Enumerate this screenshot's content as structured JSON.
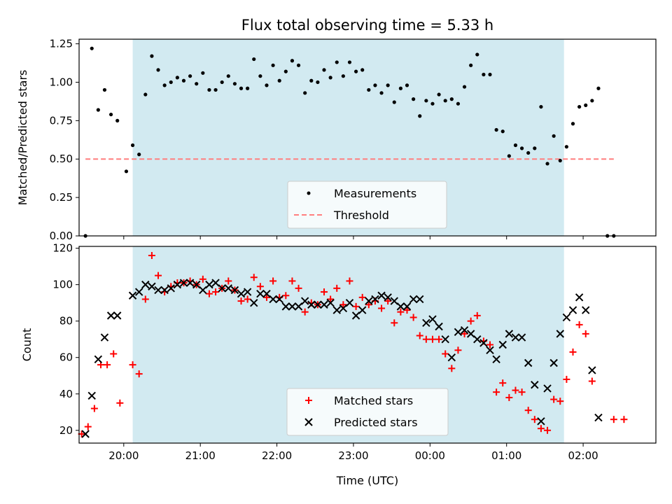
{
  "chart_data": [
    {
      "type": "scatter",
      "title": "Flux total observing time = 5.33 h",
      "xlabel": "",
      "ylabel": "Matched/Predicted stars",
      "xlim": [
        "19:25",
        "02:57"
      ],
      "ylim": [
        0,
        1.28
      ],
      "yticks": [
        0.0,
        0.25,
        0.5,
        0.75,
        1.0,
        1.25
      ],
      "ytick_labels": [
        "0.00",
        "0.25",
        "0.50",
        "0.75",
        "1.00",
        "1.25"
      ],
      "xticks": [
        "20:00",
        "21:00",
        "22:00",
        "23:00",
        "00:00",
        "01:00",
        "02:00"
      ],
      "xticks_labeled": false,
      "shaded_span": [
        "20:07",
        "01:45"
      ],
      "shaded_color": "#add8e6",
      "legend": {
        "position": "lower center",
        "entries": [
          "Measurements",
          "Threshold"
        ]
      },
      "threshold": {
        "name": "Threshold",
        "value": 0.5,
        "x_range": [
          "19:30",
          "02:24"
        ],
        "color": "#ff7f7f"
      },
      "series": [
        {
          "name": "Measurements",
          "color": "#000000",
          "marker": "dot",
          "points": [
            [
              "19:30",
              0.0
            ],
            [
              "19:35",
              1.22
            ],
            [
              "19:40",
              0.82
            ],
            [
              "19:45",
              0.95
            ],
            [
              "19:50",
              0.79
            ],
            [
              "19:55",
              0.75
            ],
            [
              "20:02",
              0.42
            ],
            [
              "20:07",
              0.59
            ],
            [
              "20:12",
              0.53
            ],
            [
              "20:17",
              0.92
            ],
            [
              "20:22",
              1.17
            ],
            [
              "20:27",
              1.08
            ],
            [
              "20:32",
              0.98
            ],
            [
              "20:37",
              1.0
            ],
            [
              "20:42",
              1.03
            ],
            [
              "20:47",
              1.01
            ],
            [
              "20:52",
              1.04
            ],
            [
              "20:57",
              0.99
            ],
            [
              "21:02",
              1.06
            ],
            [
              "21:07",
              0.95
            ],
            [
              "21:12",
              0.95
            ],
            [
              "21:17",
              1.0
            ],
            [
              "21:22",
              1.04
            ],
            [
              "21:27",
              0.99
            ],
            [
              "21:32",
              0.96
            ],
            [
              "21:37",
              0.96
            ],
            [
              "21:42",
              1.15
            ],
            [
              "21:47",
              1.04
            ],
            [
              "21:52",
              0.98
            ],
            [
              "21:57",
              1.11
            ],
            [
              "22:02",
              1.01
            ],
            [
              "22:07",
              1.07
            ],
            [
              "22:12",
              1.14
            ],
            [
              "22:17",
              1.11
            ],
            [
              "22:22",
              0.93
            ],
            [
              "22:27",
              1.01
            ],
            [
              "22:32",
              1.0
            ],
            [
              "22:37",
              1.08
            ],
            [
              "22:42",
              1.03
            ],
            [
              "22:47",
              1.13
            ],
            [
              "22:52",
              1.04
            ],
            [
              "22:57",
              1.13
            ],
            [
              "23:02",
              1.07
            ],
            [
              "23:07",
              1.08
            ],
            [
              "23:12",
              0.95
            ],
            [
              "23:17",
              0.98
            ],
            [
              "23:22",
              0.93
            ],
            [
              "23:27",
              0.98
            ],
            [
              "23:32",
              0.87
            ],
            [
              "23:37",
              0.96
            ],
            [
              "23:42",
              0.98
            ],
            [
              "23:47",
              0.89
            ],
            [
              "23:52",
              0.78
            ],
            [
              "23:57",
              0.88
            ],
            [
              "00:02",
              0.86
            ],
            [
              "00:07",
              0.92
            ],
            [
              "00:12",
              0.88
            ],
            [
              "00:17",
              0.89
            ],
            [
              "00:22",
              0.86
            ],
            [
              "00:27",
              0.97
            ],
            [
              "00:32",
              1.11
            ],
            [
              "00:37",
              1.18
            ],
            [
              "00:42",
              1.05
            ],
            [
              "00:47",
              1.05
            ],
            [
              "00:52",
              0.69
            ],
            [
              "00:57",
              0.68
            ],
            [
              "01:02",
              0.52
            ],
            [
              "01:07",
              0.59
            ],
            [
              "01:12",
              0.57
            ],
            [
              "01:17",
              0.54
            ],
            [
              "01:22",
              0.57
            ],
            [
              "01:27",
              0.84
            ],
            [
              "01:32",
              0.47
            ],
            [
              "01:37",
              0.65
            ],
            [
              "01:42",
              0.49
            ],
            [
              "01:47",
              0.58
            ],
            [
              "01:52",
              0.73
            ],
            [
              "01:57",
              0.84
            ],
            [
              "02:02",
              0.85
            ],
            [
              "02:07",
              0.88
            ],
            [
              "02:12",
              0.96
            ],
            [
              "02:19",
              0.0
            ],
            [
              "02:24",
              0.0
            ]
          ]
        }
      ]
    },
    {
      "type": "scatter",
      "title": "",
      "xlabel": "Time (UTC)",
      "ylabel": "Count",
      "xlim": [
        "19:25",
        "02:57"
      ],
      "ylim": [
        13,
        121
      ],
      "yticks": [
        20,
        40,
        60,
        80,
        100,
        120
      ],
      "xticks": [
        "20:00",
        "21:00",
        "22:00",
        "23:00",
        "00:00",
        "01:00",
        "02:00"
      ],
      "xtick_labels": [
        "20:00",
        "21:00",
        "22:00",
        "23:00",
        "00:00",
        "01:00",
        "02:00"
      ],
      "shaded_span": [
        "20:07",
        "01:45"
      ],
      "shaded_color": "#add8e6",
      "legend": {
        "position": "lower center",
        "entries": [
          "Matched stars",
          "Predicted stars"
        ]
      },
      "series": [
        {
          "name": "Matched stars",
          "color": "#ff0000",
          "marker": "plus",
          "points": [
            [
              "19:27",
              18
            ],
            [
              "19:32",
              22
            ],
            [
              "19:37",
              32
            ],
            [
              "19:42",
              56
            ],
            [
              "19:47",
              56
            ],
            [
              "19:52",
              62
            ],
            [
              "19:57",
              35
            ],
            [
              "20:07",
              56
            ],
            [
              "20:12",
              51
            ],
            [
              "20:17",
              92
            ],
            [
              "20:22",
              116
            ],
            [
              "20:27",
              105
            ],
            [
              "20:32",
              96
            ],
            [
              "20:37",
              99
            ],
            [
              "20:42",
              101
            ],
            [
              "20:47",
              101
            ],
            [
              "20:52",
              102
            ],
            [
              "20:57",
              100
            ],
            [
              "21:02",
              103
            ],
            [
              "21:07",
              95
            ],
            [
              "21:12",
              96
            ],
            [
              "21:17",
              98
            ],
            [
              "21:22",
              102
            ],
            [
              "21:27",
              97
            ],
            [
              "21:32",
              91
            ],
            [
              "21:37",
              92
            ],
            [
              "21:42",
              104
            ],
            [
              "21:47",
              99
            ],
            [
              "21:52",
              93
            ],
            [
              "21:57",
              102
            ],
            [
              "22:02",
              93
            ],
            [
              "22:07",
              94
            ],
            [
              "22:12",
              102
            ],
            [
              "22:17",
              98
            ],
            [
              "22:22",
              85
            ],
            [
              "22:27",
              90
            ],
            [
              "22:32",
              89
            ],
            [
              "22:37",
              96
            ],
            [
              "22:42",
              92
            ],
            [
              "22:47",
              98
            ],
            [
              "22:52",
              89
            ],
            [
              "22:57",
              102
            ],
            [
              "23:02",
              88
            ],
            [
              "23:07",
              93
            ],
            [
              "23:12",
              89
            ],
            [
              "23:17",
              91
            ],
            [
              "23:22",
              87
            ],
            [
              "23:27",
              91
            ],
            [
              "23:32",
              79
            ],
            [
              "23:37",
              85
            ],
            [
              "23:42",
              86
            ],
            [
              "23:47",
              82
            ],
            [
              "23:52",
              72
            ],
            [
              "23:57",
              70
            ],
            [
              "00:02",
              70
            ],
            [
              "00:07",
              70
            ],
            [
              "00:12",
              62
            ],
            [
              "00:17",
              54
            ],
            [
              "00:22",
              64
            ],
            [
              "00:27",
              73
            ],
            [
              "00:32",
              80
            ],
            [
              "00:37",
              83
            ],
            [
              "00:42",
              69
            ],
            [
              "00:47",
              67
            ],
            [
              "00:52",
              41
            ],
            [
              "00:57",
              46
            ],
            [
              "01:02",
              38
            ],
            [
              "01:07",
              42
            ],
            [
              "01:12",
              41
            ],
            [
              "01:17",
              31
            ],
            [
              "01:22",
              26
            ],
            [
              "01:27",
              21
            ],
            [
              "01:32",
              20
            ],
            [
              "01:37",
              37
            ],
            [
              "01:42",
              36
            ],
            [
              "01:47",
              48
            ],
            [
              "01:52",
              63
            ],
            [
              "01:57",
              78
            ],
            [
              "02:02",
              73
            ],
            [
              "02:07",
              47
            ],
            [
              "02:24",
              26
            ],
            [
              "02:32",
              26
            ]
          ]
        },
        {
          "name": "Predicted stars",
          "color": "#000000",
          "marker": "x",
          "points": [
            [
              "19:30",
              18
            ],
            [
              "19:35",
              39
            ],
            [
              "19:40",
              59
            ],
            [
              "19:45",
              71
            ],
            [
              "19:50",
              83
            ],
            [
              "19:55",
              83
            ],
            [
              "20:07",
              94
            ],
            [
              "20:12",
              96
            ],
            [
              "20:17",
              100
            ],
            [
              "20:22",
              99
            ],
            [
              "20:27",
              97
            ],
            [
              "20:32",
              97
            ],
            [
              "20:37",
              98
            ],
            [
              "20:42",
              100
            ],
            [
              "20:47",
              101
            ],
            [
              "20:52",
              101
            ],
            [
              "20:57",
              100
            ],
            [
              "21:02",
              97
            ],
            [
              "21:07",
              100
            ],
            [
              "21:12",
              101
            ],
            [
              "21:17",
              98
            ],
            [
              "21:22",
              98
            ],
            [
              "21:27",
              97
            ],
            [
              "21:32",
              95
            ],
            [
              "21:37",
              96
            ],
            [
              "21:42",
              90
            ],
            [
              "21:47",
              95
            ],
            [
              "21:52",
              95
            ],
            [
              "21:57",
              92
            ],
            [
              "22:02",
              92
            ],
            [
              "22:07",
              88
            ],
            [
              "22:12",
              88
            ],
            [
              "22:17",
              88
            ],
            [
              "22:22",
              91
            ],
            [
              "22:27",
              89
            ],
            [
              "22:32",
              89
            ],
            [
              "22:37",
              89
            ],
            [
              "22:42",
              90
            ],
            [
              "22:47",
              86
            ],
            [
              "22:52",
              87
            ],
            [
              "22:57",
              90
            ],
            [
              "23:02",
              83
            ],
            [
              "23:07",
              86
            ],
            [
              "23:12",
              91
            ],
            [
              "23:17",
              92
            ],
            [
              "23:22",
              94
            ],
            [
              "23:27",
              93
            ],
            [
              "23:32",
              91
            ],
            [
              "23:37",
              88
            ],
            [
              "23:42",
              88
            ],
            [
              "23:47",
              92
            ],
            [
              "23:52",
              92
            ],
            [
              "23:57",
              79
            ],
            [
              "00:02",
              81
            ],
            [
              "00:07",
              77
            ],
            [
              "00:12",
              70
            ],
            [
              "00:17",
              60
            ],
            [
              "00:22",
              74
            ],
            [
              "00:27",
              75
            ],
            [
              "00:32",
              73
            ],
            [
              "00:37",
              70
            ],
            [
              "00:42",
              68
            ],
            [
              "00:47",
              64
            ],
            [
              "00:52",
              59
            ],
            [
              "00:57",
              67
            ],
            [
              "01:02",
              73
            ],
            [
              "01:07",
              71
            ],
            [
              "01:12",
              71
            ],
            [
              "01:17",
              57
            ],
            [
              "01:22",
              45
            ],
            [
              "01:27",
              25
            ],
            [
              "01:32",
              43
            ],
            [
              "01:37",
              57
            ],
            [
              "01:42",
              73
            ],
            [
              "01:47",
              82
            ],
            [
              "01:52",
              86
            ],
            [
              "01:57",
              93
            ],
            [
              "02:02",
              86
            ],
            [
              "02:07",
              53
            ],
            [
              "02:12",
              27
            ]
          ]
        }
      ]
    }
  ]
}
